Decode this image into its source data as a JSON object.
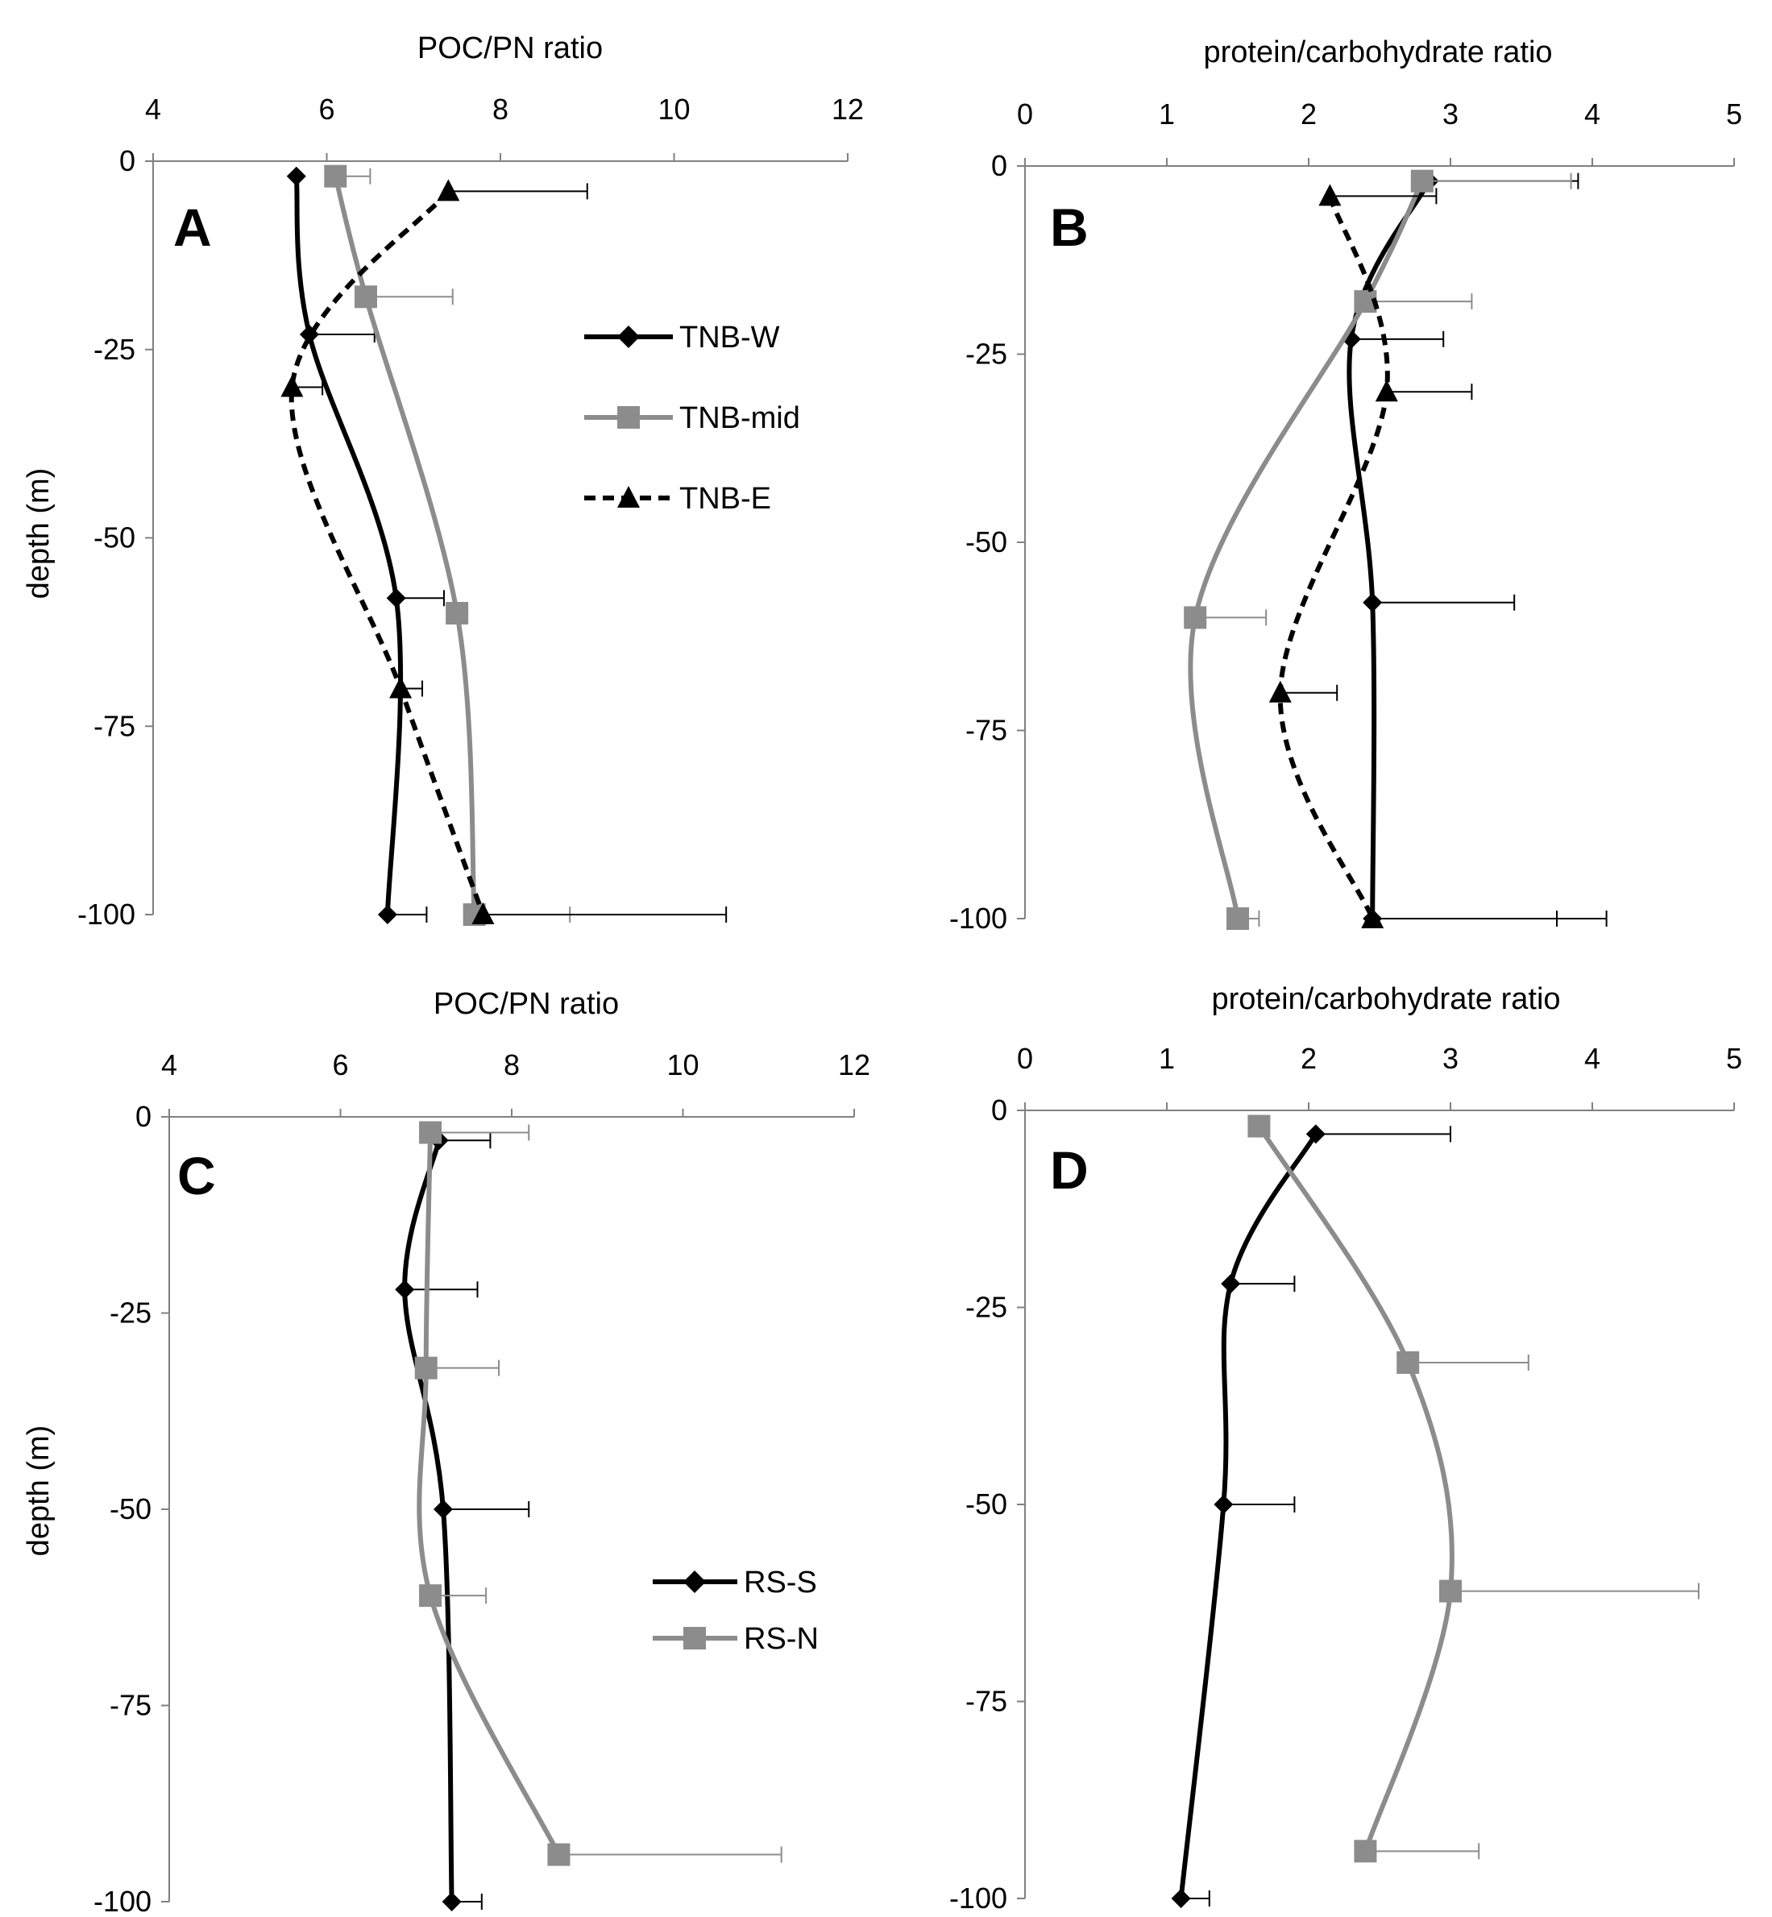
{
  "colors": {
    "black": "#000000",
    "gray": "#8c8c8c",
    "axis": "#808080"
  },
  "chart_data": [
    {
      "panel_label": "A",
      "type": "line",
      "xlabel": "POC/PN ratio",
      "ylabel": "depth (m)",
      "xlim": [
        4,
        12
      ],
      "xticks": [
        4,
        6,
        8,
        10,
        12
      ],
      "ylim": [
        -100,
        0
      ],
      "yticks": [
        0,
        -25,
        -50,
        -75,
        -100
      ],
      "legend": "middle-right",
      "series": [
        {
          "name": "TNB-W",
          "color": "#000000",
          "marker": "diamond",
          "dash": "solid",
          "points": [
            {
              "x": 5.65,
              "y": -2,
              "err": 0
            },
            {
              "x": 5.8,
              "y": -23,
              "err": 0.75
            },
            {
              "x": 6.8,
              "y": -58,
              "err": 0.55
            },
            {
              "x": 6.7,
              "y": -100,
              "err": 0.45
            }
          ]
        },
        {
          "name": "TNB-mid",
          "color": "#8c8c8c",
          "marker": "square",
          "dash": "solid",
          "points": [
            {
              "x": 6.1,
              "y": -2,
              "err": 0.4
            },
            {
              "x": 6.45,
              "y": -18,
              "err": 1.0
            },
            {
              "x": 7.5,
              "y": -60,
              "err": 0
            },
            {
              "x": 7.7,
              "y": -100,
              "err": 1.1
            }
          ]
        },
        {
          "name": "TNB-E",
          "color": "#000000",
          "marker": "triangle",
          "dash": "dashed",
          "points": [
            {
              "x": 7.4,
              "y": -4,
              "err": 1.6
            },
            {
              "x": 5.6,
              "y": -30,
              "err": 0.35
            },
            {
              "x": 6.85,
              "y": -70,
              "err": 0.25
            },
            {
              "x": 7.8,
              "y": -100,
              "err": 2.8
            }
          ]
        }
      ]
    },
    {
      "panel_label": "B",
      "type": "line",
      "xlabel": "protein/carbohydrate ratio",
      "ylabel": "",
      "xlim": [
        0,
        5
      ],
      "xticks": [
        0,
        1,
        2,
        3,
        4,
        5
      ],
      "ylim": [
        -100,
        0
      ],
      "yticks": [
        0,
        -25,
        -50,
        -75,
        -100
      ],
      "legend": "none",
      "series": [
        {
          "name": "",
          "color": "#000000",
          "marker": "diamond",
          "dash": "solid",
          "points": [
            {
              "x": 2.85,
              "y": -2,
              "err": 1.05
            },
            {
              "x": 2.3,
              "y": -23,
              "err": 0.65
            },
            {
              "x": 2.45,
              "y": -58,
              "err": 1.0
            },
            {
              "x": 2.45,
              "y": -100,
              "err": 1.65
            }
          ]
        },
        {
          "name": "",
          "color": "#8c8c8c",
          "marker": "square",
          "dash": "solid",
          "points": [
            {
              "x": 2.8,
              "y": -2,
              "err": 1.05
            },
            {
              "x": 2.4,
              "y": -18,
              "err": 0.75
            },
            {
              "x": 1.2,
              "y": -60,
              "err": 0.5
            },
            {
              "x": 1.5,
              "y": -100,
              "err": 0.15
            }
          ]
        },
        {
          "name": "",
          "color": "#000000",
          "marker": "triangle",
          "dash": "dashed",
          "points": [
            {
              "x": 2.15,
              "y": -4,
              "err": 0.75
            },
            {
              "x": 2.55,
              "y": -30,
              "err": 0.6
            },
            {
              "x": 1.8,
              "y": -70,
              "err": 0.4
            },
            {
              "x": 2.45,
              "y": -100,
              "err": 1.3
            }
          ]
        }
      ]
    },
    {
      "panel_label": "C",
      "type": "line",
      "xlabel": "POC/PN ratio",
      "ylabel": "depth (m)",
      "xlim": [
        4,
        12
      ],
      "xticks": [
        4,
        6,
        8,
        10,
        12
      ],
      "ylim": [
        -100,
        0
      ],
      "yticks": [
        0,
        -25,
        -50,
        -75,
        -100
      ],
      "legend": "bottom-right",
      "series": [
        {
          "name": "RS-S",
          "color": "#000000",
          "marker": "diamond",
          "dash": "solid",
          "points": [
            {
              "x": 7.15,
              "y": -3,
              "err": 0.6
            },
            {
              "x": 6.75,
              "y": -22,
              "err": 0.85
            },
            {
              "x": 7.2,
              "y": -50,
              "err": 1.0
            },
            {
              "x": 7.3,
              "y": -100,
              "err": 0.35
            }
          ]
        },
        {
          "name": "RS-N",
          "color": "#8c8c8c",
          "marker": "square",
          "dash": "solid",
          "points": [
            {
              "x": 7.05,
              "y": -2,
              "err": 1.15
            },
            {
              "x": 7.0,
              "y": -32,
              "err": 0.85
            },
            {
              "x": 7.05,
              "y": -61,
              "err": 0.65
            },
            {
              "x": 8.55,
              "y": -94,
              "err": 2.6
            }
          ]
        }
      ]
    },
    {
      "panel_label": "D",
      "type": "line",
      "xlabel": "protein/carbohydrate ratio",
      "ylabel": "",
      "xlim": [
        0,
        5
      ],
      "xticks": [
        0,
        1,
        2,
        3,
        4,
        5
      ],
      "ylim": [
        -100,
        0
      ],
      "yticks": [
        0,
        -25,
        -50,
        -75,
        -100
      ],
      "legend": "none",
      "series": [
        {
          "name": "",
          "color": "#000000",
          "marker": "diamond",
          "dash": "solid",
          "points": [
            {
              "x": 2.05,
              "y": -3,
              "err": 0.95
            },
            {
              "x": 1.45,
              "y": -22,
              "err": 0.45
            },
            {
              "x": 1.4,
              "y": -50,
              "err": 0.5
            },
            {
              "x": 1.1,
              "y": -100,
              "err": 0.2
            }
          ]
        },
        {
          "name": "",
          "color": "#8c8c8c",
          "marker": "square",
          "dash": "solid",
          "points": [
            {
              "x": 1.65,
              "y": -2,
              "err": 0
            },
            {
              "x": 2.7,
              "y": -32,
              "err": 0.85
            },
            {
              "x": 3.0,
              "y": -61,
              "err": 1.75
            },
            {
              "x": 2.4,
              "y": -94,
              "err": 0.8
            }
          ]
        }
      ]
    }
  ]
}
